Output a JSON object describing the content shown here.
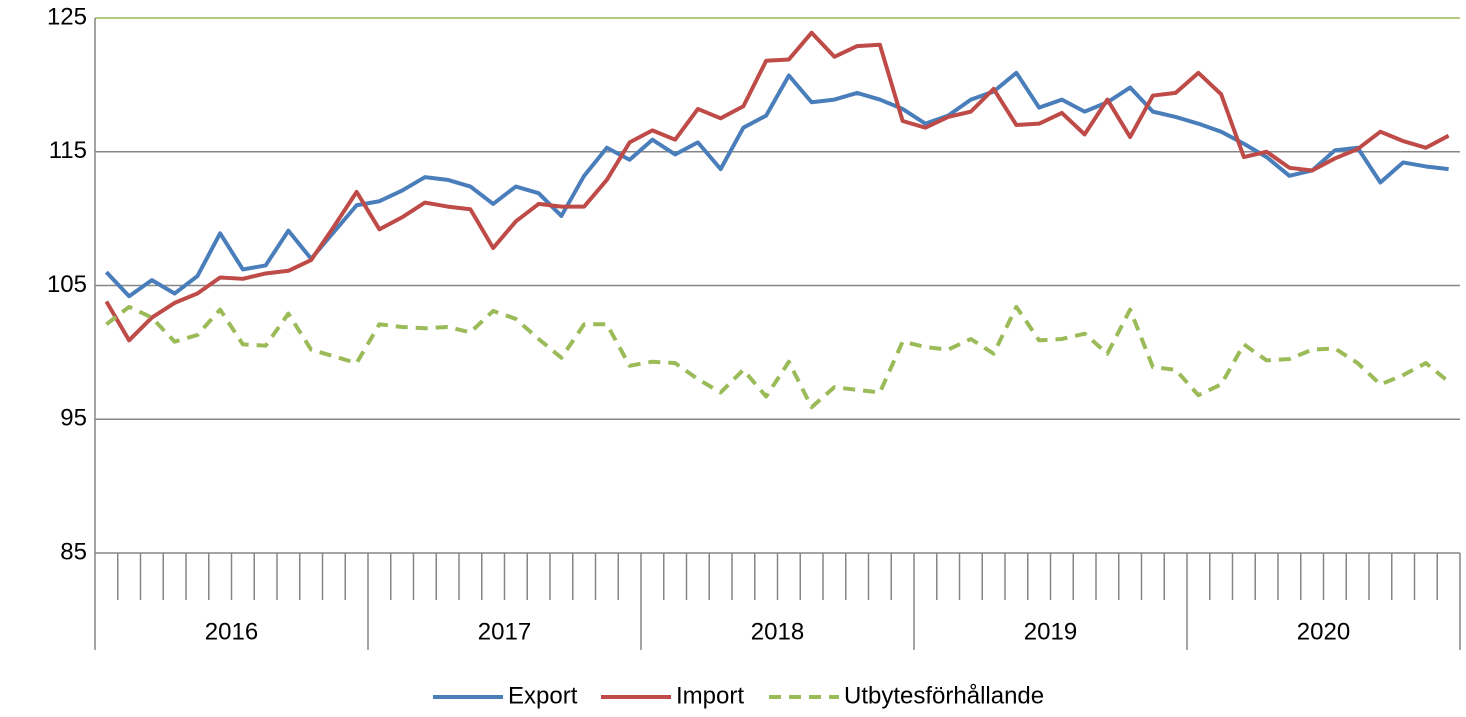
{
  "chart_data": {
    "type": "line",
    "categories": [
      null,
      null,
      null,
      null,
      null,
      null,
      null,
      null,
      null,
      null,
      null,
      null,
      null,
      null,
      null,
      null,
      null,
      null,
      null,
      null,
      null,
      null,
      null,
      null,
      null,
      null,
      null,
      null,
      null,
      null,
      null,
      null,
      null,
      null,
      null,
      null,
      null,
      null,
      null,
      null,
      null,
      null,
      null,
      null,
      null,
      null,
      null,
      null,
      null,
      null,
      null,
      null,
      null,
      null,
      null,
      null,
      null,
      null,
      null,
      null
    ],
    "year_labels": [
      "2016",
      "2017",
      "2018",
      "2019",
      "2020"
    ],
    "ylim": [
      85,
      125
    ],
    "yticks": [
      85,
      95,
      105,
      115,
      125
    ],
    "grid": true,
    "legend": "bottom",
    "series": [
      {
        "name": "Export",
        "color": "#4a7ebb",
        "dash": false,
        "values": [
          106.0,
          104.2,
          105.4,
          104.4,
          105.7,
          108.9,
          106.2,
          106.5,
          109.1,
          107.0,
          109.0,
          111.0,
          111.3,
          112.1,
          113.1,
          112.9,
          112.4,
          111.1,
          112.4,
          111.9,
          110.2,
          113.2,
          115.3,
          114.4,
          115.9,
          114.8,
          115.7,
          113.7,
          116.8,
          117.7,
          120.7,
          118.7,
          118.9,
          119.4,
          118.9,
          118.2,
          117.1,
          117.7,
          118.9,
          119.5,
          120.9,
          118.3,
          118.9,
          118.0,
          118.7,
          119.8,
          118.0,
          117.6,
          117.1,
          116.5,
          115.6,
          114.6,
          113.2,
          113.6,
          115.1,
          115.3,
          112.7,
          114.2,
          113.9,
          113.7
        ]
      },
      {
        "name": "Import",
        "color": "#be4b48",
        "dash": false,
        "values": [
          103.8,
          100.9,
          102.6,
          103.7,
          104.4,
          105.6,
          105.5,
          105.9,
          106.1,
          106.9,
          109.4,
          112.0,
          109.2,
          110.1,
          111.2,
          110.9,
          110.7,
          107.8,
          109.8,
          111.1,
          110.9,
          110.9,
          112.9,
          115.7,
          116.6,
          115.9,
          118.2,
          117.5,
          118.4,
          121.8,
          121.9,
          123.9,
          122.1,
          122.9,
          123.0,
          117.3,
          116.8,
          117.6,
          118.0,
          119.7,
          117.0,
          117.1,
          117.9,
          116.3,
          118.9,
          116.1,
          119.2,
          119.4,
          120.9,
          119.3,
          114.6,
          115.0,
          113.8,
          113.6,
          114.5,
          115.2,
          116.5,
          115.8,
          115.3,
          116.2
        ]
      },
      {
        "name": "Utbytesförhållande",
        "color": "#9bbb59",
        "dash": true,
        "values": [
          102.1,
          103.4,
          102.6,
          100.8,
          101.3,
          103.2,
          100.6,
          100.5,
          102.9,
          100.2,
          99.7,
          99.2,
          102.1,
          101.9,
          101.8,
          101.9,
          101.5,
          103.1,
          102.5,
          101.0,
          99.6,
          102.1,
          102.1,
          99.0,
          99.3,
          99.2,
          98.0,
          97.0,
          98.7,
          96.7,
          99.3,
          95.9,
          97.4,
          97.2,
          97.0,
          100.8,
          100.4,
          100.2,
          101.0,
          99.9,
          103.4,
          100.9,
          101.0,
          101.4,
          99.9,
          103.2,
          98.9,
          98.7,
          96.8,
          97.6,
          100.6,
          99.4,
          99.5,
          100.2,
          100.3,
          99.2,
          97.6,
          98.3,
          99.2,
          97.8
        ]
      }
    ]
  }
}
